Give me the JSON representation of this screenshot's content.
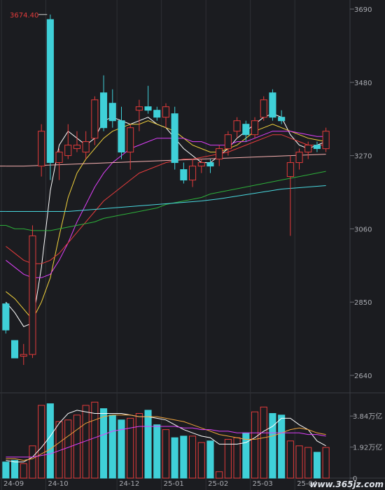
{
  "chart_data": [
    {
      "type": "candlestick",
      "x_ticks": [
        "24-09",
        "24-10",
        "24-12",
        "25-01",
        "25-02",
        "25-03",
        "25-04"
      ],
      "y_ticks": [
        3690,
        3480,
        3270,
        3060,
        2850,
        2640
      ],
      "ylim": [
        2610,
        3700
      ],
      "max_label": "3674.40",
      "colors": {
        "up": "#e33b3b",
        "down": "#3fd0d8",
        "ma5": "#ffffff",
        "ma10": "#f2d23c",
        "ma20": "#e040fb",
        "ma30": "#e63c3c",
        "ma60": "#2db13a",
        "ma120": "#49d9e0",
        "ma250": "#f7b0b0"
      },
      "candles": [
        {
          "o": 2845,
          "h": 2850,
          "l": 2760,
          "c": 2770
        },
        {
          "o": 2740,
          "h": 2740,
          "l": 2690,
          "c": 2690
        },
        {
          "o": 2695,
          "h": 2730,
          "l": 2670,
          "c": 2700
        },
        {
          "o": 2700,
          "h": 3070,
          "l": 2690,
          "c": 3040
        },
        {
          "o": 3240,
          "h": 3360,
          "l": 3210,
          "c": 3340
        },
        {
          "o": 3660,
          "h": 3674.4,
          "l": 3200,
          "c": 3250
        },
        {
          "o": 3250,
          "h": 3290,
          "l": 3200,
          "c": 3280
        },
        {
          "o": 3270,
          "h": 3360,
          "l": 3260,
          "c": 3300
        },
        {
          "o": 3290,
          "h": 3340,
          "l": 3280,
          "c": 3300
        },
        {
          "o": 3280,
          "h": 3340,
          "l": 3260,
          "c": 3310
        },
        {
          "o": 3320,
          "h": 3440,
          "l": 3300,
          "c": 3430
        },
        {
          "o": 3450,
          "h": 3500,
          "l": 3340,
          "c": 3350
        },
        {
          "o": 3420,
          "h": 3460,
          "l": 3350,
          "c": 3370
        },
        {
          "o": 3370,
          "h": 3410,
          "l": 3260,
          "c": 3280
        },
        {
          "o": 3280,
          "h": 3360,
          "l": 3230,
          "c": 3350
        },
        {
          "o": 3400,
          "h": 3430,
          "l": 3340,
          "c": 3410
        },
        {
          "o": 3410,
          "h": 3470,
          "l": 3390,
          "c": 3400
        },
        {
          "o": 3400,
          "h": 3410,
          "l": 3370,
          "c": 3380
        },
        {
          "o": 3380,
          "h": 3420,
          "l": 3350,
          "c": 3410
        },
        {
          "o": 3390,
          "h": 3410,
          "l": 3230,
          "c": 3250
        },
        {
          "o": 3230,
          "h": 3250,
          "l": 3190,
          "c": 3200
        },
        {
          "o": 3200,
          "h": 3260,
          "l": 3180,
          "c": 3240
        },
        {
          "o": 3240,
          "h": 3260,
          "l": 3220,
          "c": 3250
        },
        {
          "o": 3250,
          "h": 3260,
          "l": 3220,
          "c": 3240
        },
        {
          "o": 3260,
          "h": 3300,
          "l": 3240,
          "c": 3290
        },
        {
          "o": 3290,
          "h": 3340,
          "l": 3270,
          "c": 3330
        },
        {
          "o": 3340,
          "h": 3380,
          "l": 3320,
          "c": 3370
        },
        {
          "o": 3360,
          "h": 3370,
          "l": 3310,
          "c": 3330
        },
        {
          "o": 3330,
          "h": 3380,
          "l": 3320,
          "c": 3370
        },
        {
          "o": 3380,
          "h": 3440,
          "l": 3370,
          "c": 3430
        },
        {
          "o": 3450,
          "h": 3460,
          "l": 3370,
          "c": 3380
        },
        {
          "o": 3380,
          "h": 3400,
          "l": 3360,
          "c": 3370
        },
        {
          "o": 3210,
          "h": 3270,
          "l": 3040,
          "c": 3250
        },
        {
          "o": 3250,
          "h": 3290,
          "l": 3230,
          "c": 3280
        },
        {
          "o": 3280,
          "h": 3310,
          "l": 3260,
          "c": 3300
        },
        {
          "o": 3300,
          "h": 3310,
          "l": 3280,
          "c": 3290
        },
        {
          "o": 3290,
          "h": 3350,
          "l": 3280,
          "c": 3340
        }
      ],
      "ma": {
        "ma5": [
          2850,
          2820,
          2780,
          2790,
          2950,
          3170,
          3300,
          3340,
          3320,
          3300,
          3320,
          3370,
          3380,
          3370,
          3360,
          3370,
          3380,
          3360,
          3350,
          3320,
          3290,
          3270,
          3250,
          3250,
          3270,
          3290,
          3320,
          3340,
          3360,
          3380,
          3390,
          3380,
          3330,
          3300,
          3290,
          3300,
          3310
        ],
        "ma10": [
          2880,
          2860,
          2830,
          2800,
          2850,
          2920,
          3040,
          3150,
          3220,
          3260,
          3290,
          3320,
          3340,
          3350,
          3360,
          3360,
          3370,
          3360,
          3350,
          3340,
          3320,
          3300,
          3290,
          3280,
          3280,
          3290,
          3300,
          3320,
          3340,
          3350,
          3360,
          3350,
          3340,
          3330,
          3320,
          3315,
          3310
        ],
        "ma20": [
          2970,
          2950,
          2930,
          2920,
          2920,
          2930,
          2970,
          3020,
          3080,
          3130,
          3180,
          3220,
          3250,
          3270,
          3290,
          3300,
          3310,
          3320,
          3320,
          3320,
          3320,
          3310,
          3310,
          3300,
          3300,
          3300,
          3310,
          3310,
          3320,
          3330,
          3340,
          3340,
          3340,
          3335,
          3330,
          3325,
          3325
        ],
        "ma30": [
          3010,
          2990,
          2970,
          2960,
          2960,
          2970,
          2990,
          3020,
          3050,
          3080,
          3110,
          3140,
          3160,
          3180,
          3200,
          3220,
          3230,
          3240,
          3250,
          3255,
          3260,
          3260,
          3265,
          3270,
          3275,
          3280,
          3290,
          3300,
          3310,
          3320,
          3330,
          3330,
          3320,
          3310,
          3300,
          3300,
          3300
        ],
        "ma60": [
          3070,
          3060,
          3060,
          3055,
          3055,
          3055,
          3060,
          3065,
          3070,
          3075,
          3080,
          3090,
          3095,
          3100,
          3105,
          3110,
          3115,
          3120,
          3130,
          3135,
          3140,
          3145,
          3150,
          3160,
          3165,
          3170,
          3175,
          3180,
          3185,
          3190,
          3195,
          3200,
          3205,
          3210,
          3215,
          3220,
          3225
        ],
        "ma120": [
          3110,
          3110,
          3110,
          3110,
          3110,
          3110,
          3110,
          3110,
          3112,
          3114,
          3116,
          3118,
          3120,
          3122,
          3124,
          3126,
          3128,
          3130,
          3132,
          3134,
          3136,
          3138,
          3140,
          3143,
          3146,
          3150,
          3154,
          3158,
          3162,
          3166,
          3170,
          3174,
          3176,
          3178,
          3180,
          3182,
          3184
        ],
        "ma250": [
          3240,
          3240,
          3240,
          3241,
          3242,
          3243,
          3244,
          3245,
          3246,
          3247,
          3248,
          3249,
          3250,
          3251,
          3252,
          3253,
          3254,
          3255,
          3256,
          3257,
          3258,
          3259,
          3260,
          3261,
          3262,
          3263,
          3264,
          3265,
          3266,
          3267,
          3268,
          3269,
          3270,
          3271,
          3272,
          3273,
          3274
        ]
      }
    },
    {
      "type": "bar",
      "y_ticks": [
        {
          "value": 3.84,
          "label": "3.84万亿"
        },
        {
          "value": 1.92,
          "label": "1.92万亿"
        },
        {
          "value": 0,
          "label": "0"
        }
      ],
      "ylim": [
        0,
        4.8
      ],
      "volume": [
        1.0,
        1.1,
        0.9,
        2.0,
        4.5,
        4.6,
        3.5,
        3.6,
        3.9,
        4.5,
        4.7,
        4.3,
        3.9,
        3.6,
        3.7,
        4.0,
        4.2,
        3.3,
        3.0,
        2.5,
        2.6,
        2.6,
        2.2,
        2.3,
        0.4,
        2.4,
        2.5,
        2.8,
        4.1,
        4.4,
        4.0,
        3.9,
        2.3,
        2.0,
        1.9,
        1.6,
        1.9
      ],
      "ma": {
        "vol_ma5": [
          1.1,
          1.0,
          1.0,
          1.3,
          1.9,
          2.6,
          3.4,
          4.0,
          4.2,
          4.1,
          4.0,
          4.0,
          4.0,
          4.0,
          3.9,
          3.8,
          3.8,
          3.7,
          3.6,
          3.3,
          3.0,
          2.8,
          2.6,
          2.5,
          2.1,
          2.1,
          2.1,
          2.2,
          2.5,
          2.9,
          3.2,
          3.7,
          3.7,
          3.3,
          3.0,
          2.3,
          2.0
        ],
        "vol_ma10": [
          1.2,
          1.2,
          1.1,
          1.2,
          1.5,
          1.8,
          2.2,
          2.6,
          3.0,
          3.4,
          3.6,
          3.8,
          3.9,
          3.9,
          3.9,
          3.8,
          3.8,
          3.8,
          3.7,
          3.6,
          3.5,
          3.3,
          3.1,
          2.9,
          2.7,
          2.6,
          2.5,
          2.4,
          2.4,
          2.5,
          2.6,
          2.8,
          3.0,
          3.1,
          3.0,
          2.8,
          2.7
        ],
        "vol_ma20": [
          1.3,
          1.3,
          1.3,
          1.3,
          1.4,
          1.5,
          1.7,
          1.9,
          2.1,
          2.3,
          2.5,
          2.7,
          2.9,
          3.0,
          3.1,
          3.2,
          3.2,
          3.2,
          3.2,
          3.2,
          3.1,
          3.1,
          3.0,
          3.0,
          2.9,
          2.9,
          2.8,
          2.8,
          2.8,
          2.8,
          2.8,
          2.8,
          2.8,
          2.8,
          2.7,
          2.7,
          2.6
        ]
      }
    }
  ],
  "watermark": "www.365jz.com"
}
